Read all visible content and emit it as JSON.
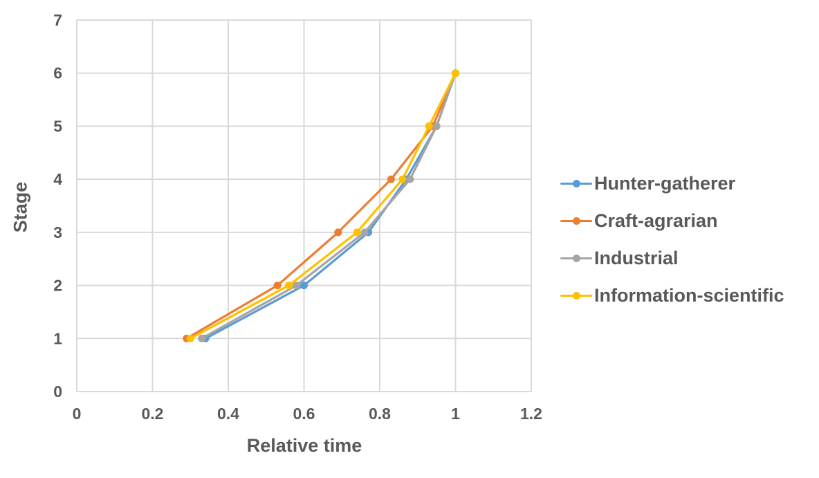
{
  "page": {
    "background": "#ffffff"
  },
  "chart_data": {
    "type": "line",
    "title": "",
    "xlabel": "Relative time",
    "ylabel": "Stage",
    "xlim": [
      0,
      1.2
    ],
    "ylim": [
      0,
      7
    ],
    "grid": true,
    "legend_position": "right",
    "x_tick_values": [
      0,
      0.2,
      0.4,
      0.6,
      0.8,
      1,
      1.2
    ],
    "x_tick_labels": [
      "0",
      "0.2",
      "0.4",
      "0.6",
      "0.8",
      "1",
      "1.2"
    ],
    "y_tick_values": [
      0,
      1,
      2,
      3,
      4,
      5,
      6,
      7
    ],
    "y_tick_labels": [
      "0",
      "1",
      "2",
      "3",
      "4",
      "5",
      "6",
      "7"
    ],
    "stages": [
      1,
      2,
      3,
      4,
      5,
      6
    ],
    "series": [
      {
        "name": "Hunter-gatherer",
        "color": "#5B9BD5",
        "marker": "circle",
        "x": [
          0.34,
          0.6,
          0.77,
          0.87,
          0.95,
          1.0
        ],
        "y": [
          1,
          2,
          3,
          4,
          5,
          6
        ]
      },
      {
        "name": "Craft-agrarian",
        "color": "#ED7D31",
        "marker": "circle",
        "x": [
          0.29,
          0.53,
          0.69,
          0.83,
          0.94,
          1.0
        ],
        "y": [
          1,
          2,
          3,
          4,
          5,
          6
        ]
      },
      {
        "name": "Industrial",
        "color": "#A5A5A5",
        "marker": "circle",
        "x": [
          0.33,
          0.58,
          0.76,
          0.88,
          0.95,
          1.0
        ],
        "y": [
          1,
          2,
          3,
          4,
          5,
          6
        ]
      },
      {
        "name": "Information-scientific",
        "color": "#FFC000",
        "marker": "circle",
        "x": [
          0.3,
          0.56,
          0.74,
          0.86,
          0.93,
          1.0
        ],
        "y": [
          1,
          2,
          3,
          4,
          5,
          6
        ]
      }
    ],
    "colors": {
      "grid": "#D9D9D9",
      "axis": "#D9D9D9",
      "text": "#595959"
    }
  }
}
